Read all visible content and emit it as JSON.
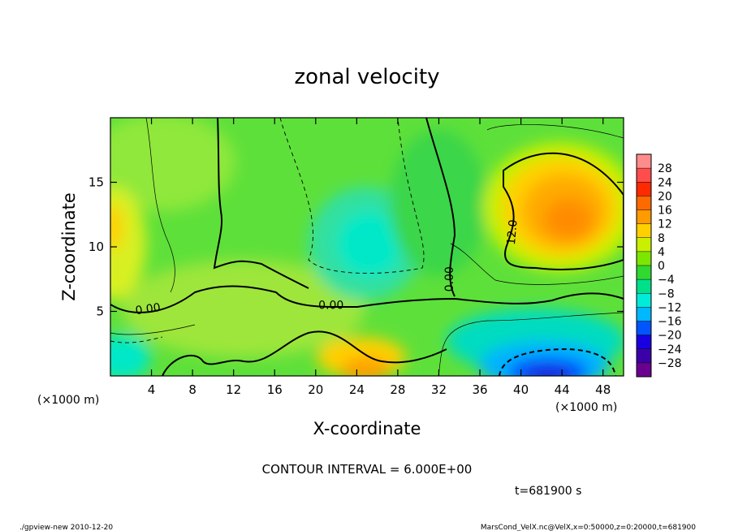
{
  "chart_data": {
    "type": "heatmap",
    "title": "zonal velocity",
    "xlabel": "X-coordinate",
    "ylabel": "Z-coordinate",
    "x_unit_label": "(×1000 m)",
    "z_unit_label": "(×1000 m)",
    "xlim": [
      0,
      50
    ],
    "ylim": [
      0,
      20
    ],
    "x_ticks": [
      4,
      8,
      12,
      16,
      20,
      24,
      28,
      32,
      36,
      40,
      44,
      48
    ],
    "y_ticks": [
      5,
      10,
      15
    ],
    "colorbar_ticks": [
      28,
      24,
      20,
      16,
      12,
      8,
      4,
      0,
      -4,
      -8,
      -12,
      -16,
      -20,
      -24,
      -28
    ],
    "colorbar_colors": [
      "#ff8c8c",
      "#ff4d4d",
      "#ff2a00",
      "#ff6a00",
      "#ff9a00",
      "#ffd000",
      "#c8f000",
      "#7de600",
      "#30d830",
      "#00e08a",
      "#00ecd8",
      "#00b8ff",
      "#0055ff",
      "#1800e0",
      "#3c00a8",
      "#6a0090"
    ],
    "contour_labels": [
      {
        "text": "0.00",
        "x": 3.7,
        "z": 4.9,
        "angle": -8
      },
      {
        "text": "0.00",
        "x": 21.5,
        "z": 5.2,
        "angle": 0
      },
      {
        "text": "0.00",
        "x": 33.4,
        "z": 7.5,
        "angle": -90
      },
      {
        "text": "12.0",
        "x": 39.5,
        "z": 11.1,
        "angle": -85
      }
    ],
    "contour_interval_text": "CONTOUR INTERVAL = 6.000E+00",
    "time_text": "t=681900 s"
  },
  "footer": {
    "left": "./gpview-new  2010-12-20",
    "right": "MarsCond_VelX.nc@VelX,x=0:50000,z=0:20000,t=681900"
  }
}
